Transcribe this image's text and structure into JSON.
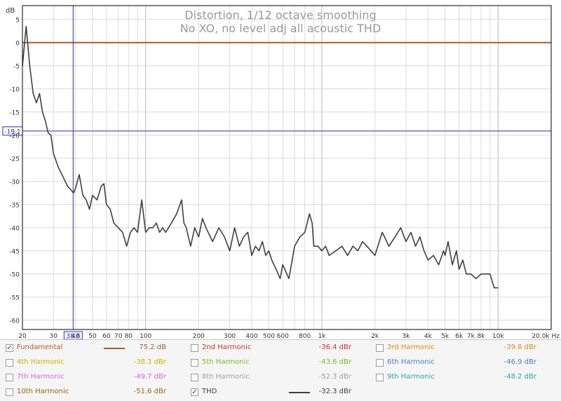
{
  "chart_data": {
    "type": "line",
    "title": "Distortion, 1/12 octave smoothing",
    "subtitle": "No XO, no  level adj all acoustic THD",
    "ylabel": "dB",
    "xlabel": "",
    "x_scale": "log",
    "xlim": [
      20,
      20000
    ],
    "ylim": [
      -62,
      8
    ],
    "y_ticks": [
      5,
      0,
      -5,
      -10,
      -15,
      -20,
      -25,
      -30,
      -35,
      -40,
      -45,
      -50,
      -55,
      -60
    ],
    "x_tick_labels": [
      {
        "f": 20,
        "label": "20"
      },
      {
        "f": 30,
        "label": "30"
      },
      {
        "f": 40,
        "label": "40"
      },
      {
        "f": 50,
        "label": "50"
      },
      {
        "f": 60,
        "label": "60"
      },
      {
        "f": 70,
        "label": "70"
      },
      {
        "f": 80,
        "label": "80"
      },
      {
        "f": 100,
        "label": "100"
      },
      {
        "f": 200,
        "label": "200"
      },
      {
        "f": 300,
        "label": "300"
      },
      {
        "f": 400,
        "label": "400"
      },
      {
        "f": 500,
        "label": "500"
      },
      {
        "f": 600,
        "label": "600"
      },
      {
        "f": 800,
        "label": "800"
      },
      {
        "f": 1000,
        "label": "1k"
      },
      {
        "f": 2000,
        "label": "2k"
      },
      {
        "f": 3000,
        "label": "3k"
      },
      {
        "f": 4000,
        "label": "4k"
      },
      {
        "f": 5000,
        "label": "5k"
      },
      {
        "f": 6000,
        "label": "6k"
      },
      {
        "f": 7000,
        "label": "7k"
      },
      {
        "f": 8000,
        "label": "8k"
      },
      {
        "f": 10000,
        "label": "10k"
      },
      {
        "f": 20000,
        "label": "20.0k Hz"
      }
    ],
    "cursor": {
      "x": 38.8,
      "x_label": "38.8",
      "y": -19.1,
      "y_label": "-19.1"
    },
    "grid": true,
    "series": [
      {
        "name": "Fundamental",
        "color": "#b05a2a",
        "x": [
          20,
          20000
        ],
        "y": [
          0,
          0
        ]
      },
      {
        "name": "THD",
        "color": "#404040",
        "x": [
          20,
          21,
          22,
          23,
          24,
          25,
          26,
          27,
          28,
          29,
          30,
          32,
          34,
          36,
          38,
          39,
          40,
          42,
          44,
          46,
          48,
          50,
          53,
          56,
          58,
          60,
          63,
          66,
          70,
          74,
          78,
          82,
          86,
          90,
          95,
          100,
          105,
          110,
          115,
          120,
          125,
          130,
          140,
          150,
          160,
          165,
          170,
          180,
          190,
          200,
          210,
          220,
          240,
          260,
          280,
          300,
          320,
          340,
          360,
          380,
          400,
          420,
          440,
          460,
          480,
          500,
          520,
          550,
          580,
          600,
          650,
          700,
          750,
          800,
          850,
          880,
          900,
          950,
          1000,
          1050,
          1100,
          1200,
          1300,
          1400,
          1500,
          1600,
          1700,
          1800,
          2000,
          2200,
          2400,
          2600,
          2800,
          3000,
          3200,
          3400,
          3600,
          3800,
          4000,
          4300,
          4600,
          4900,
          5000,
          5200,
          5500,
          5800,
          6000,
          6300,
          6600,
          7000,
          7500,
          8000,
          8500,
          9000,
          9500,
          10000
        ],
        "y": [
          -5,
          3.5,
          -5,
          -11,
          -13,
          -11,
          -15,
          -17,
          -19.5,
          -20,
          -24,
          -27,
          -29,
          -31,
          -32,
          -32.5,
          -31.5,
          -28.5,
          -33,
          -34,
          -36,
          -33,
          -34,
          -31,
          -30.5,
          -35,
          -36,
          -39,
          -40,
          -41,
          -44,
          -41,
          -40,
          -41,
          -34,
          -41,
          -40,
          -40,
          -39,
          -41,
          -40,
          -41,
          -39,
          -37,
          -34,
          -39,
          -40,
          -44,
          -40,
          -42,
          -38,
          -40,
          -43,
          -40,
          -42,
          -45,
          -40,
          -44,
          -42,
          -41,
          -46,
          -44,
          -45,
          -43,
          -46,
          -45,
          -47,
          -49,
          -51,
          -48,
          -51,
          -44,
          -42,
          -41,
          -37,
          -39,
          -44,
          -44,
          -45,
          -44,
          -46,
          -45,
          -44,
          -46,
          -44,
          -45,
          -43,
          -44,
          -46,
          -41,
          -44,
          -42,
          -40,
          -43,
          -41,
          -44,
          -42,
          -45,
          -47,
          -46,
          -48,
          -45,
          -46,
          -43,
          -48,
          -45,
          -49,
          -47,
          -50,
          -50,
          -51,
          -50,
          -50,
          -50,
          -53,
          -53
        ]
      }
    ]
  },
  "legend": {
    "rows": [
      [
        {
          "name": "Fundamental",
          "checked": true,
          "color": "#b05a2a",
          "value": "75.2 dB",
          "swatch": true
        },
        {
          "name": "2nd Harmonic",
          "checked": false,
          "color": "#c0392b",
          "value": "-36.4 dBr"
        },
        {
          "name": "3rd Harmonic",
          "checked": false,
          "color": "#d98a1a",
          "value": "-39.8 dBr"
        }
      ],
      [
        {
          "name": "4th Harmonic",
          "checked": false,
          "color": "#c8b400",
          "value": "-38.3 dBr"
        },
        {
          "name": "5th Harmonic",
          "checked": false,
          "color": "#7cb82f",
          "value": "-43.6 dBr"
        },
        {
          "name": "6th Harmonic",
          "checked": false,
          "color": "#4a7fc0",
          "value": "-46.9 dBr"
        }
      ],
      [
        {
          "name": "7th Harmonic",
          "checked": false,
          "color": "#d86ad8",
          "value": "-49.7 dBr"
        },
        {
          "name": "8th Harmonic",
          "checked": false,
          "color": "#a0a0a0",
          "value": "-52.3 dBr"
        },
        {
          "name": "9th Harmonic",
          "checked": false,
          "color": "#2aa6a6",
          "value": "-48.2 dBr"
        }
      ],
      [
        {
          "name": "10th Harmonic",
          "checked": false,
          "color": "#8a6a1a",
          "value": "-51.6 dBr"
        },
        {
          "name": "THD",
          "checked": true,
          "color": "#404040",
          "value": "-32.3 dBr",
          "swatch": true
        }
      ]
    ]
  }
}
